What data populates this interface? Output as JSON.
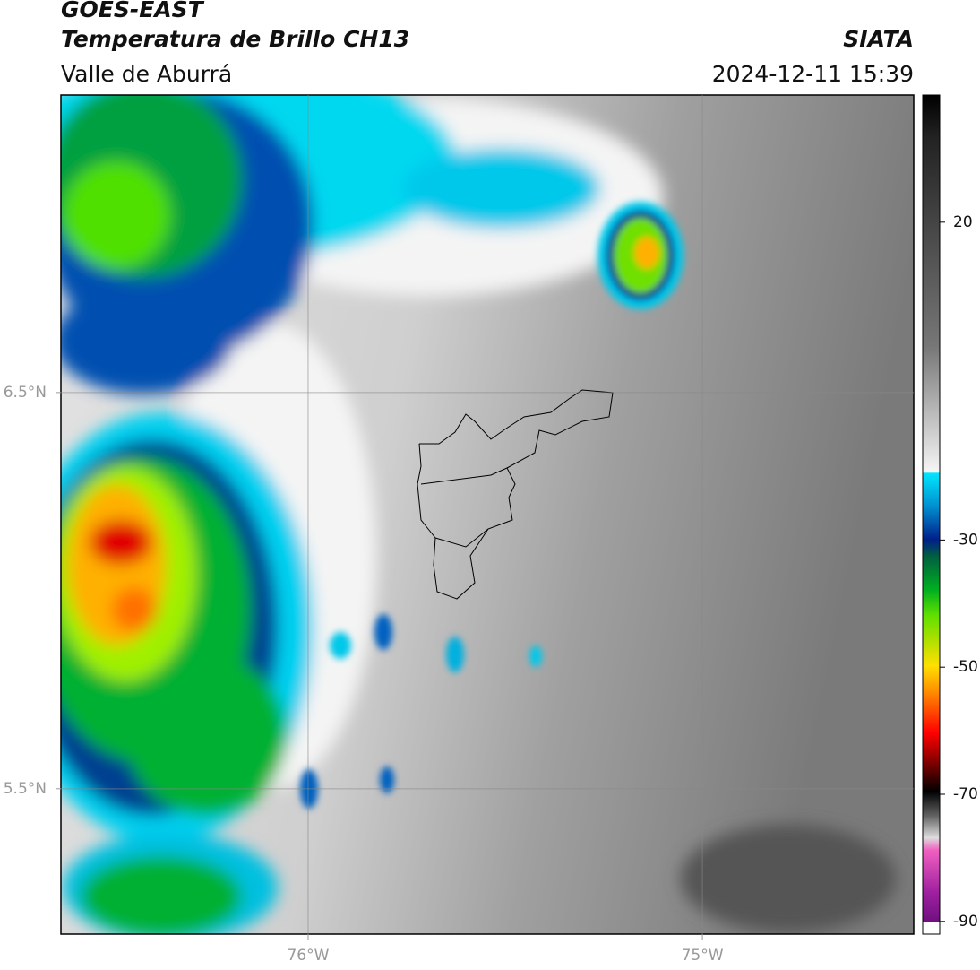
{
  "header": {
    "title": "GOES-EAST",
    "subtitle": "Temperatura de Brillo CH13",
    "source": "SIATA",
    "region": "Valle de Aburrá",
    "datetime": "2024-12-11 15:39"
  },
  "map": {
    "xlim": [
      -76.627,
      -74.464
    ],
    "ylim": [
      5.133,
      7.251
    ],
    "xticks": [
      {
        "value": -76,
        "label": "76°W"
      },
      {
        "value": -75,
        "label": "75°W"
      }
    ],
    "yticks": [
      {
        "value": 6.5,
        "label": "6.5°N"
      },
      {
        "value": 5.5,
        "label": "5.5°N"
      }
    ],
    "grid": true
  },
  "colorbar": {
    "lim": [
      40,
      -92
    ],
    "ticks": [
      20,
      -30,
      -50,
      -70,
      -90
    ]
  }
}
